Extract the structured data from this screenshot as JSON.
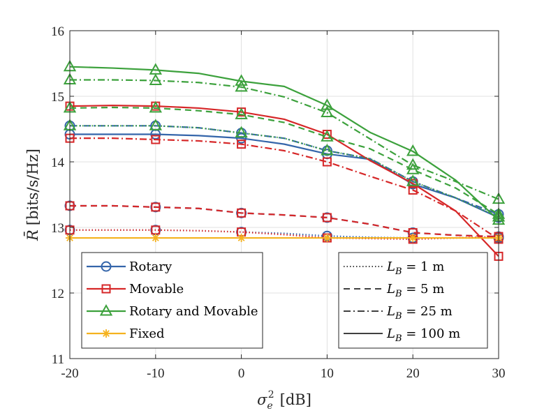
{
  "chart_data": {
    "type": "line",
    "title": "",
    "xlabel": "σ_e^2 [dB]",
    "xlabel_parts": {
      "symbol": "σ",
      "sup": "2",
      "sub": "e",
      "unit": "[dB]"
    },
    "ylabel": "R̄ [bits/s/Hz]",
    "ylabel_parts": {
      "symbol": "R̄",
      "unit": "[bits/s/Hz]"
    },
    "xlim": [
      -20,
      30
    ],
    "ylim": [
      11,
      16
    ],
    "xticks": [
      -20,
      -10,
      0,
      10,
      20,
      30
    ],
    "xtick_labels": [
      "-20",
      "-10",
      "0",
      "10",
      "20",
      "30"
    ],
    "yticks": [
      11,
      12,
      13,
      14,
      15,
      16
    ],
    "ytick_labels": [
      "11",
      "12",
      "13",
      "14",
      "15",
      "16"
    ],
    "grid": true,
    "x": [
      -20,
      -15,
      -10,
      -5,
      0,
      5,
      10,
      15,
      20,
      25,
      30
    ],
    "marker_x": [
      -20,
      -10,
      0,
      10,
      20,
      30
    ],
    "colors": {
      "Rotary": "#3465aa",
      "Movable": "#d62728",
      "Rotary and Movable": "#3ca13c",
      "Fixed": "#f5b21e"
    },
    "series": [
      {
        "name": "Rotary",
        "LB": "1 m",
        "style": "dotted",
        "values": [
          12.96,
          12.96,
          12.96,
          12.95,
          12.93,
          12.91,
          12.87,
          12.85,
          12.84,
          12.84,
          12.84
        ]
      },
      {
        "name": "Rotary",
        "LB": "5 m",
        "style": "dashed",
        "values": [
          13.33,
          13.33,
          13.31,
          13.29,
          13.22,
          13.19,
          13.15,
          13.05,
          12.92,
          12.88,
          12.86
        ]
      },
      {
        "name": "Rotary",
        "LB": "25 m",
        "style": "dashdot",
        "values": [
          14.55,
          14.55,
          14.55,
          14.52,
          14.44,
          14.36,
          14.17,
          14.05,
          13.7,
          13.45,
          13.2
        ]
      },
      {
        "name": "Rotary",
        "LB": "100 m",
        "style": "solid",
        "values": [
          14.42,
          14.42,
          14.42,
          14.4,
          14.36,
          14.27,
          14.12,
          14.04,
          13.66,
          13.45,
          13.15
        ]
      },
      {
        "name": "Movable",
        "LB": "1 m",
        "style": "dotted",
        "values": [
          12.96,
          12.96,
          12.96,
          12.95,
          12.93,
          12.89,
          12.84,
          12.83,
          12.82,
          12.84,
          12.86
        ]
      },
      {
        "name": "Movable",
        "LB": "5 m",
        "style": "dashed",
        "values": [
          13.33,
          13.33,
          13.31,
          13.29,
          13.22,
          13.19,
          13.15,
          13.05,
          12.92,
          12.88,
          12.86
        ]
      },
      {
        "name": "Movable",
        "LB": "25 m",
        "style": "dashdot",
        "values": [
          14.36,
          14.36,
          14.34,
          14.32,
          14.27,
          14.17,
          14.0,
          13.78,
          13.57,
          13.25,
          12.82
        ]
      },
      {
        "name": "Movable",
        "LB": "100 m",
        "style": "solid",
        "values": [
          14.85,
          14.86,
          14.85,
          14.82,
          14.76,
          14.65,
          14.42,
          14.02,
          13.67,
          13.25,
          12.56
        ]
      },
      {
        "name": "Rotary and Movable",
        "LB": "1 m",
        "style": "dotted",
        "values": [
          14.55,
          14.55,
          14.55,
          14.52,
          14.44,
          14.36,
          14.17,
          14.05,
          13.7,
          13.45,
          13.16
        ]
      },
      {
        "name": "Rotary and Movable",
        "LB": "5 m",
        "style": "dashed",
        "values": [
          14.82,
          14.83,
          14.82,
          14.78,
          14.72,
          14.6,
          14.38,
          14.2,
          13.88,
          13.6,
          13.2
        ]
      },
      {
        "name": "Rotary and Movable",
        "LB": "25 m",
        "style": "dashdot",
        "values": [
          15.25,
          15.25,
          15.24,
          15.21,
          15.14,
          14.99,
          14.75,
          14.35,
          13.95,
          13.7,
          13.43
        ]
      },
      {
        "name": "Rotary and Movable",
        "LB": "100 m",
        "style": "solid",
        "values": [
          15.45,
          15.43,
          15.4,
          15.35,
          15.23,
          15.15,
          14.86,
          14.45,
          14.16,
          13.72,
          13.11
        ]
      },
      {
        "name": "Fixed",
        "LB": "",
        "style": "solid",
        "values": [
          12.84,
          12.84,
          12.84,
          12.84,
          12.84,
          12.84,
          12.84,
          12.84,
          12.84,
          12.84,
          12.84
        ]
      }
    ],
    "legend_method": {
      "position": "bottom-left",
      "entries": [
        {
          "label": "Rotary",
          "marker": "circle",
          "color": "#3465aa"
        },
        {
          "label": "Movable",
          "marker": "square",
          "color": "#d62728"
        },
        {
          "label": "Rotary and Movable",
          "marker": "triangle",
          "color": "#3ca13c"
        },
        {
          "label": "Fixed",
          "marker": "star",
          "color": "#f5b21e"
        }
      ]
    },
    "legend_lb": {
      "position": "bottom-right",
      "entries": [
        {
          "label": "L_B = 1 m",
          "symbol": "L",
          "sub": "B",
          "text": " = 1 m",
          "style": "dotted"
        },
        {
          "label": "L_B = 5 m",
          "symbol": "L",
          "sub": "B",
          "text": " = 5 m",
          "style": "dashed"
        },
        {
          "label": "L_B = 25 m",
          "symbol": "L",
          "sub": "B",
          "text": " = 25 m",
          "style": "dashdot"
        },
        {
          "label": "L_B = 100 m",
          "symbol": "L",
          "sub": "B",
          "text": " = 100 m",
          "style": "solid"
        }
      ]
    }
  }
}
